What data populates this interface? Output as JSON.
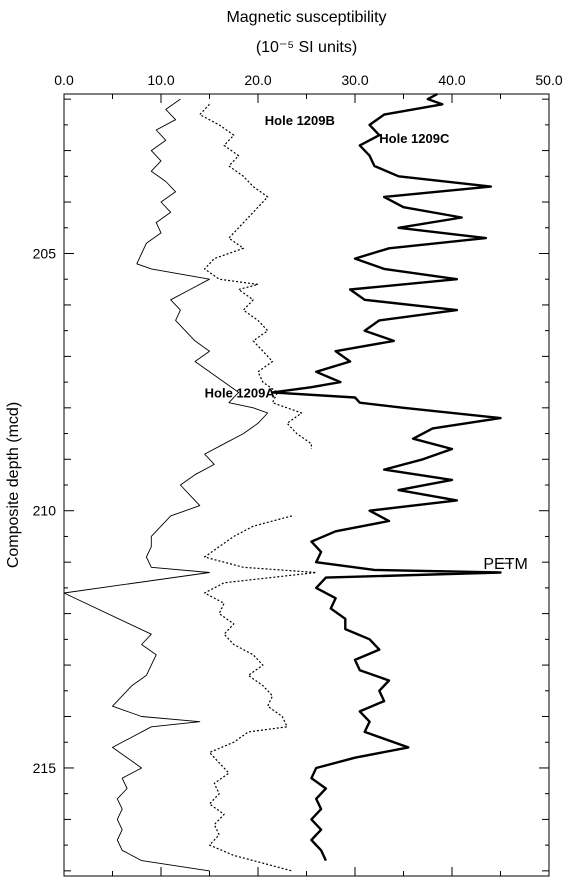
{
  "chart_data": {
    "type": "line",
    "title": "",
    "xlabel": "Magnetic susceptibility",
    "xunits": "(10⁻⁵ SI units)",
    "ylabel": "Composite depth (mcd)",
    "xlim": [
      0,
      50
    ],
    "ylim": [
      201.9,
      217.1
    ],
    "y_inverted": true,
    "x_axis_position": "top",
    "x_ticks": [
      0,
      10,
      20,
      30,
      40,
      50
    ],
    "x_tick_labels": [
      "0.0",
      "10.0",
      "20.0",
      "30.0",
      "40.0",
      "50.0"
    ],
    "y_ticks": [
      205,
      210,
      215
    ],
    "y_tick_labels": [
      "205",
      "210",
      "215"
    ],
    "grid": false,
    "series": [
      {
        "name": "Hole 1209A",
        "style": "thin-solid",
        "color": "#000000",
        "points": [
          [
            12.0,
            202.0
          ],
          [
            10.5,
            202.2
          ],
          [
            11.5,
            202.4
          ],
          [
            9.5,
            202.6
          ],
          [
            10.5,
            202.8
          ],
          [
            9.0,
            203.0
          ],
          [
            10.0,
            203.2
          ],
          [
            9.0,
            203.4
          ],
          [
            10.5,
            203.6
          ],
          [
            11.5,
            203.8
          ],
          [
            10.0,
            204.0
          ],
          [
            11.0,
            204.2
          ],
          [
            9.5,
            204.4
          ],
          [
            10.0,
            204.6
          ],
          [
            8.5,
            204.8
          ],
          [
            8.0,
            205.0
          ],
          [
            7.5,
            205.2
          ],
          [
            9.0,
            205.3
          ],
          [
            15.0,
            205.5
          ],
          [
            13.0,
            205.7
          ],
          [
            11.0,
            205.9
          ],
          [
            12.0,
            206.1
          ],
          [
            11.5,
            206.3
          ],
          [
            12.5,
            206.5
          ],
          [
            13.5,
            206.7
          ],
          [
            15.0,
            206.9
          ],
          [
            13.5,
            207.1
          ],
          [
            15.0,
            207.3
          ],
          [
            16.5,
            207.5
          ],
          [
            18.0,
            207.7
          ],
          [
            17.0,
            207.9
          ],
          [
            19.5,
            208.0
          ],
          [
            21.0,
            208.1
          ],
          [
            20.0,
            208.3
          ],
          [
            18.5,
            208.5
          ],
          [
            16.5,
            208.7
          ],
          [
            14.5,
            208.9
          ],
          [
            15.5,
            209.1
          ],
          [
            13.5,
            209.3
          ],
          [
            12.0,
            209.5
          ],
          [
            13.0,
            209.7
          ],
          [
            14.0,
            209.9
          ],
          [
            11.0,
            210.1
          ],
          [
            10.0,
            210.3
          ],
          [
            9.0,
            210.5
          ],
          [
            9.0,
            210.7
          ],
          [
            8.5,
            210.9
          ],
          [
            9.0,
            211.1
          ],
          [
            15.0,
            211.2
          ],
          [
            0.0,
            211.6
          ],
          [
            0.0,
            211.6
          ],
          [
            9.0,
            212.4
          ],
          [
            8.0,
            212.6
          ],
          [
            9.5,
            212.8
          ],
          [
            9.0,
            213.0
          ],
          [
            8.5,
            213.2
          ],
          [
            7.0,
            213.4
          ],
          [
            6.0,
            213.6
          ],
          [
            5.0,
            213.8
          ],
          [
            8.0,
            214.0
          ],
          [
            14.0,
            214.1
          ],
          [
            9.0,
            214.2
          ],
          [
            7.0,
            214.4
          ],
          [
            5.0,
            214.6
          ],
          [
            6.5,
            214.8
          ],
          [
            8.0,
            215.0
          ],
          [
            6.0,
            215.2
          ],
          [
            6.5,
            215.4
          ],
          [
            5.5,
            215.6
          ],
          [
            6.0,
            215.8
          ],
          [
            5.5,
            216.0
          ],
          [
            6.0,
            216.2
          ],
          [
            5.5,
            216.4
          ],
          [
            6.0,
            216.6
          ],
          [
            8.0,
            216.8
          ],
          [
            15.0,
            217.0
          ]
        ]
      },
      {
        "name": "Hole 1209B",
        "style": "dotted",
        "color": "#000000",
        "points": [
          [
            15.0,
            202.1
          ],
          [
            14.0,
            202.3
          ],
          [
            16.0,
            202.5
          ],
          [
            17.5,
            202.7
          ],
          [
            16.5,
            202.9
          ],
          [
            18.0,
            203.1
          ],
          [
            17.0,
            203.3
          ],
          [
            18.5,
            203.5
          ],
          [
            19.5,
            203.7
          ],
          [
            21.0,
            203.9
          ],
          [
            20.0,
            204.1
          ],
          [
            19.0,
            204.3
          ],
          [
            18.0,
            204.5
          ],
          [
            17.0,
            204.7
          ],
          [
            18.5,
            204.9
          ],
          [
            15.5,
            205.1
          ],
          [
            14.5,
            205.3
          ],
          [
            16.0,
            205.5
          ],
          [
            20.0,
            205.6
          ],
          [
            18.0,
            205.7
          ],
          [
            19.5,
            205.9
          ],
          [
            18.5,
            206.1
          ],
          [
            20.0,
            206.3
          ],
          [
            21.0,
            206.5
          ],
          [
            19.5,
            206.7
          ],
          [
            20.5,
            206.9
          ],
          [
            21.5,
            207.1
          ],
          [
            20.0,
            207.3
          ],
          [
            20.5,
            207.5
          ],
          [
            22.0,
            207.7
          ],
          [
            21.5,
            207.9
          ],
          [
            24.5,
            208.1
          ],
          [
            23.0,
            208.3
          ],
          [
            24.0,
            208.5
          ],
          [
            25.5,
            208.7
          ],
          [
            25.5,
            208.8
          ]
        ]
      },
      {
        "name": "Hole 1209B (lower)",
        "style": "dotted",
        "color": "#000000",
        "points": [
          [
            23.5,
            210.1
          ],
          [
            19.5,
            210.3
          ],
          [
            17.5,
            210.5
          ],
          [
            16.0,
            210.7
          ],
          [
            14.5,
            210.9
          ],
          [
            18.5,
            211.1
          ],
          [
            26.0,
            211.2
          ],
          [
            16.5,
            211.4
          ],
          [
            14.5,
            211.6
          ],
          [
            16.5,
            211.8
          ],
          [
            16.0,
            212.0
          ],
          [
            17.5,
            212.2
          ],
          [
            16.5,
            212.4
          ],
          [
            17.5,
            212.6
          ],
          [
            19.5,
            212.8
          ],
          [
            20.5,
            213.0
          ],
          [
            19.0,
            213.2
          ],
          [
            20.5,
            213.4
          ],
          [
            21.5,
            213.6
          ],
          [
            21.0,
            213.8
          ],
          [
            22.5,
            214.0
          ],
          [
            23.0,
            214.2
          ],
          [
            19.0,
            214.3
          ],
          [
            17.5,
            214.5
          ],
          [
            15.0,
            214.7
          ],
          [
            16.0,
            214.9
          ],
          [
            17.0,
            215.1
          ],
          [
            15.5,
            215.3
          ],
          [
            16.0,
            215.5
          ],
          [
            15.0,
            215.7
          ],
          [
            16.5,
            215.9
          ],
          [
            15.5,
            216.1
          ],
          [
            16.0,
            216.3
          ],
          [
            15.0,
            216.5
          ],
          [
            17.5,
            216.7
          ],
          [
            21.5,
            216.9
          ],
          [
            23.5,
            217.0
          ]
        ]
      },
      {
        "name": "Hole 1209C",
        "style": "thick-solid",
        "color": "#000000",
        "points": [
          [
            38.5,
            201.9
          ],
          [
            37.5,
            202.0
          ],
          [
            39.0,
            202.1
          ],
          [
            33.0,
            202.3
          ],
          [
            31.5,
            202.5
          ],
          [
            32.5,
            202.7
          ],
          [
            30.5,
            202.9
          ],
          [
            31.5,
            203.1
          ],
          [
            32.0,
            203.3
          ],
          [
            34.5,
            203.5
          ],
          [
            44.0,
            203.7
          ],
          [
            33.0,
            203.9
          ],
          [
            35.0,
            204.1
          ],
          [
            41.0,
            204.3
          ],
          [
            34.5,
            204.5
          ],
          [
            43.5,
            204.7
          ],
          [
            33.5,
            204.9
          ],
          [
            30.0,
            205.1
          ],
          [
            33.0,
            205.3
          ],
          [
            40.5,
            205.5
          ],
          [
            29.5,
            205.7
          ],
          [
            31.0,
            205.9
          ],
          [
            40.5,
            206.1
          ],
          [
            32.5,
            206.3
          ],
          [
            31.0,
            206.5
          ],
          [
            34.0,
            206.7
          ],
          [
            28.0,
            206.9
          ],
          [
            29.5,
            207.1
          ],
          [
            26.0,
            207.3
          ],
          [
            28.5,
            207.5
          ],
          [
            25.5,
            207.6
          ],
          [
            21.5,
            207.7
          ],
          [
            30.0,
            207.8
          ],
          [
            30.5,
            207.9
          ],
          [
            35.0,
            208.0
          ],
          [
            45.0,
            208.2
          ],
          [
            38.0,
            208.4
          ],
          [
            36.0,
            208.6
          ],
          [
            40.0,
            208.8
          ],
          [
            37.0,
            209.0
          ],
          [
            33.0,
            209.2
          ],
          [
            40.0,
            209.4
          ],
          [
            34.5,
            209.6
          ],
          [
            40.5,
            209.8
          ],
          [
            31.5,
            210.0
          ],
          [
            33.5,
            210.2
          ],
          [
            28.0,
            210.4
          ],
          [
            25.5,
            210.6
          ],
          [
            26.5,
            210.8
          ],
          [
            26.0,
            211.0
          ],
          [
            32.0,
            211.15
          ],
          [
            45.0,
            211.2
          ],
          [
            27.0,
            211.3
          ],
          [
            26.0,
            211.5
          ],
          [
            28.0,
            211.7
          ],
          [
            27.5,
            211.9
          ],
          [
            29.0,
            212.1
          ],
          [
            29.0,
            212.3
          ],
          [
            31.5,
            212.5
          ],
          [
            32.5,
            212.7
          ],
          [
            30.0,
            212.9
          ],
          [
            30.5,
            213.1
          ],
          [
            33.5,
            213.3
          ],
          [
            32.5,
            213.5
          ],
          [
            33.0,
            213.7
          ],
          [
            30.5,
            213.9
          ],
          [
            31.5,
            214.1
          ],
          [
            31.0,
            214.3
          ],
          [
            35.5,
            214.6
          ],
          [
            30.0,
            214.8
          ],
          [
            26.0,
            215.0
          ],
          [
            25.5,
            215.2
          ],
          [
            27.0,
            215.4
          ],
          [
            26.0,
            215.6
          ],
          [
            26.5,
            215.8
          ],
          [
            25.5,
            216.0
          ],
          [
            26.5,
            216.2
          ],
          [
            25.5,
            216.4
          ],
          [
            26.5,
            216.6
          ],
          [
            27.0,
            216.8
          ]
        ]
      }
    ],
    "annotations": [
      {
        "text": "Hole 1209A",
        "x": 14.5,
        "y": 207.8
      },
      {
        "text": "Hole 1209B",
        "x": 20.7,
        "y": 202.5
      },
      {
        "text": "Hole 1209C",
        "x": 32.5,
        "y": 202.85
      },
      {
        "text": "PETM",
        "x": 45.5,
        "y": 211.0
      }
    ]
  }
}
